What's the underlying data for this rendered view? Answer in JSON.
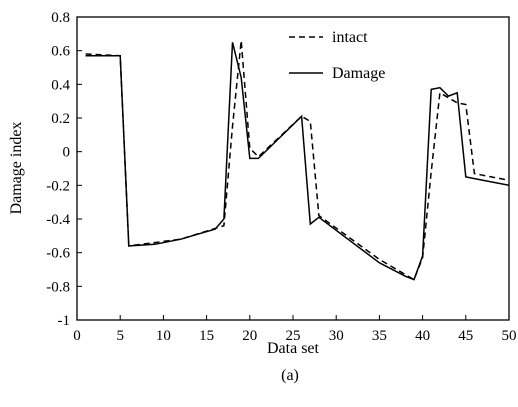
{
  "chart_data": {
    "type": "line",
    "caption": "(a)",
    "xlabel": "Data set",
    "ylabel": "Damage index",
    "xlim": [
      0,
      50
    ],
    "ylim": [
      -1,
      0.8
    ],
    "xticks": [
      0,
      5,
      10,
      15,
      20,
      25,
      30,
      35,
      40,
      45,
      50
    ],
    "yticks": [
      -1,
      -0.8,
      -0.6,
      -0.4,
      -0.2,
      0,
      0.2,
      0.4,
      0.6,
      0.8
    ],
    "ytick_labels": [
      "-1",
      "-0.8",
      "-0.6",
      "-0.4",
      "-0.2",
      "0",
      "0.2",
      "0.4",
      "0.6",
      "0.8"
    ],
    "grid": false,
    "legend_position": "top-right",
    "series": [
      {
        "name": "intact",
        "style": "dashed",
        "color": "#000000",
        "x": [
          1,
          5,
          6,
          12,
          17,
          18,
          19,
          20,
          21,
          26,
          27,
          28,
          35,
          39,
          40,
          41,
          42,
          44,
          45,
          46,
          50
        ],
        "y": [
          0.58,
          0.57,
          -0.56,
          -0.52,
          -0.44,
          0.15,
          0.66,
          0.02,
          -0.03,
          0.21,
          0.18,
          -0.38,
          -0.64,
          -0.76,
          -0.63,
          -0.12,
          0.35,
          0.29,
          0.28,
          -0.13,
          -0.17
        ]
      },
      {
        "name": "Damage",
        "style": "solid",
        "color": "#000000",
        "x": [
          1,
          5,
          6,
          9,
          12,
          16,
          17,
          18,
          19,
          20,
          21,
          26,
          27,
          28,
          35,
          38,
          39,
          40,
          41,
          42,
          43,
          44,
          45,
          46,
          50
        ],
        "y": [
          0.57,
          0.57,
          -0.56,
          -0.55,
          -0.52,
          -0.46,
          -0.4,
          0.65,
          0.44,
          -0.04,
          -0.04,
          0.21,
          -0.43,
          -0.39,
          -0.66,
          -0.74,
          -0.76,
          -0.62,
          0.37,
          0.38,
          0.33,
          0.35,
          -0.15,
          -0.16,
          -0.2
        ]
      }
    ]
  }
}
